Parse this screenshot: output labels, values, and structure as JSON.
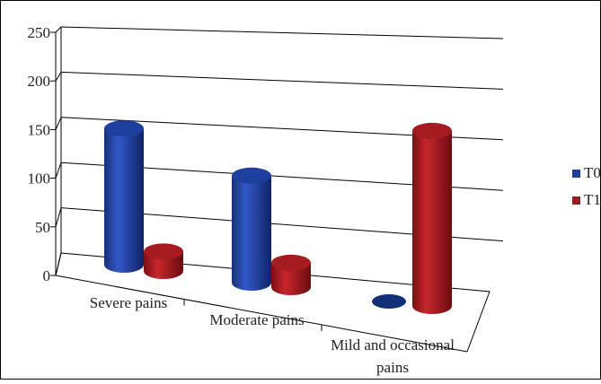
{
  "chart_data": {
    "type": "bar",
    "style": "3d-cylinder",
    "categories": [
      "Severe pains",
      "Moderate pains",
      "Mild and occasional pains"
    ],
    "category_lines": [
      [
        "Severe pains"
      ],
      [
        "Moderate pains"
      ],
      [
        "Mild and occasional",
        "pains"
      ]
    ],
    "series": [
      {
        "name": "T0",
        "values": [
          140,
          110,
          0
        ],
        "color": "#1f3f9f"
      },
      {
        "name": "T1",
        "values": [
          20,
          25,
          180
        ],
        "color": "#a0191e"
      }
    ],
    "yticks": [
      0,
      50,
      100,
      150,
      200,
      250
    ],
    "ylim": [
      0,
      250
    ],
    "grid": true,
    "legend_position": "right",
    "title": "",
    "xlabel": "",
    "ylabel": ""
  }
}
